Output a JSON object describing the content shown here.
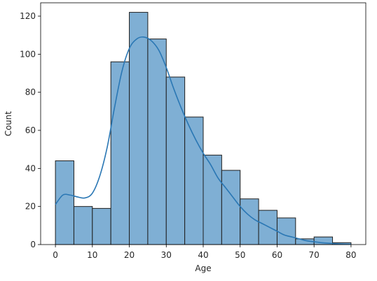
{
  "chart_data": {
    "type": "bar",
    "title": "",
    "xlabel": "Age",
    "ylabel": "Count",
    "xlim": [
      -4,
      84
    ],
    "ylim": [
      0,
      127
    ],
    "xticks": [
      0,
      10,
      20,
      30,
      40,
      50,
      60,
      70,
      80
    ],
    "yticks": [
      0,
      20,
      40,
      60,
      80,
      100,
      120
    ],
    "grid": false,
    "bins": [
      {
        "x0": 0,
        "x1": 5,
        "count": 44
      },
      {
        "x0": 5,
        "x1": 10,
        "count": 20
      },
      {
        "x0": 10,
        "x1": 15,
        "count": 19
      },
      {
        "x0": 15,
        "x1": 20,
        "count": 96
      },
      {
        "x0": 20,
        "x1": 25,
        "count": 122
      },
      {
        "x0": 25,
        "x1": 30,
        "count": 108
      },
      {
        "x0": 30,
        "x1": 35,
        "count": 88
      },
      {
        "x0": 35,
        "x1": 40,
        "count": 67
      },
      {
        "x0": 40,
        "x1": 45,
        "count": 47
      },
      {
        "x0": 45,
        "x1": 50,
        "count": 39
      },
      {
        "x0": 50,
        "x1": 55,
        "count": 24
      },
      {
        "x0": 55,
        "x1": 60,
        "count": 18
      },
      {
        "x0": 60,
        "x1": 65,
        "count": 14
      },
      {
        "x0": 65,
        "x1": 70,
        "count": 3
      },
      {
        "x0": 70,
        "x1": 75,
        "count": 4
      },
      {
        "x0": 75,
        "x1": 80,
        "count": 1
      }
    ],
    "kde": {
      "x": [
        0,
        2,
        4,
        6,
        8,
        10,
        12,
        14,
        16,
        18,
        20,
        22,
        24,
        26,
        28,
        30,
        32,
        34,
        36,
        38,
        40,
        42,
        44,
        46,
        48,
        50,
        52,
        54,
        56,
        58,
        60,
        62,
        64,
        66,
        68,
        70,
        72,
        74,
        76,
        78,
        80
      ],
      "y": [
        21,
        26,
        26,
        25,
        24.5,
        27,
        36,
        51,
        72,
        91,
        103,
        108,
        109,
        107,
        102,
        93,
        82,
        72,
        63,
        55,
        48,
        42,
        35,
        30,
        25,
        20,
        16,
        13,
        11,
        9,
        7,
        5,
        4,
        3,
        2,
        1.5,
        1,
        0.7,
        0.4,
        0.2,
        0.1
      ]
    },
    "colors": {
      "bar_fill": "#7fafd4",
      "bar_edge": "#1f1f1f",
      "kde_line": "#2a77b4"
    }
  }
}
